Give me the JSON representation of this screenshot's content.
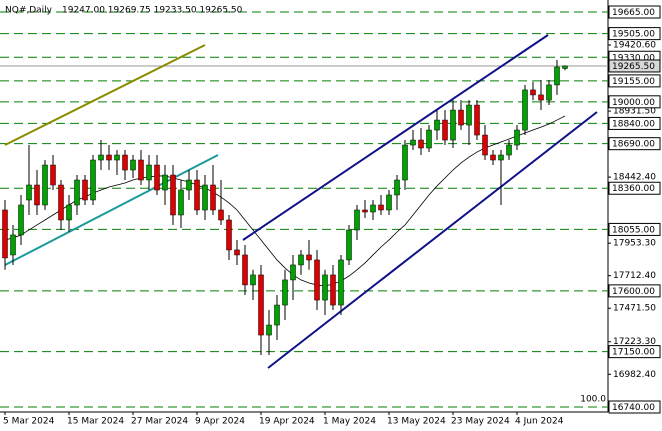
{
  "chart_data": {
    "type": "candlestick",
    "title": "NQ#,Daily",
    "subtitle": "19247.00 19269.75 19233.50 19265.50",
    "categories": [
      "5 Mar 2024",
      null,
      null,
      null,
      null,
      null,
      null,
      null,
      "15 Mar 2024",
      null,
      null,
      null,
      null,
      null,
      null,
      null,
      "27 Mar 2024",
      null,
      null,
      null,
      null,
      null,
      null,
      null,
      "9 Apr 2024",
      null,
      null,
      null,
      null,
      null,
      null,
      null,
      "19 Apr 2024",
      null,
      null,
      null,
      null,
      null,
      null,
      null,
      "1 May 2024",
      null,
      null,
      null,
      null,
      null,
      null,
      null,
      "13 May 2024",
      null,
      null,
      null,
      null,
      null,
      null,
      null,
      "23 May 2024",
      null,
      null,
      null,
      null,
      null,
      null,
      null,
      "4 Jun 2024",
      null,
      null,
      null,
      null,
      null,
      null
    ],
    "open": [
      18199,
      17866,
      18014,
      18273,
      18384,
      18236,
      18532,
      18384,
      18125,
      18236,
      18421,
      18273,
      18569,
      18606,
      18569,
      18606,
      18495,
      18569,
      18421,
      18532,
      18347,
      18458,
      18162,
      18347,
      18421,
      18199,
      18384,
      18199,
      18125,
      17903,
      17866,
      17644,
      17718,
      17273,
      17347,
      17495,
      17681,
      17792,
      17866,
      17829,
      17532,
      17718,
      17495,
      17829,
      18051,
      18199,
      18184,
      18236,
      18199,
      18310,
      18421,
      18680,
      18717,
      18658,
      18791,
      18865,
      18717,
      18939,
      18828,
      18976,
      18754,
      18606,
      18569,
      18606,
      18680,
      18791,
      19088,
      19051,
      19013,
      19125,
      19247
    ],
    "high": [
      18273,
      18088,
      18310,
      18680,
      18495,
      18569,
      18606,
      18421,
      18310,
      18458,
      18458,
      18606,
      18717,
      18680,
      18643,
      18643,
      18606,
      18643,
      18606,
      18606,
      18532,
      18532,
      18421,
      18495,
      18495,
      18458,
      18532,
      18421,
      18162,
      17977,
      17940,
      17756,
      17792,
      17458,
      17569,
      17756,
      17866,
      17903,
      17977,
      17903,
      17756,
      17792,
      17866,
      18088,
      18236,
      18273,
      18273,
      18310,
      18347,
      18458,
      18717,
      18791,
      18806,
      18828,
      18939,
      18939,
      19013,
      19013,
      19013,
      19013,
      18828,
      18643,
      18643,
      18717,
      18828,
      19125,
      19147,
      19162,
      19162,
      19310,
      19269.75
    ],
    "low": [
      17756,
      17792,
      17940,
      18162,
      18162,
      18199,
      18347,
      18051,
      18036,
      18162,
      18236,
      18236,
      18495,
      18495,
      18458,
      18421,
      18436,
      18384,
      18347,
      18310,
      18236,
      18088,
      18066,
      18273,
      18162,
      18125,
      18162,
      18088,
      17829,
      17792,
      17569,
      17532,
      17125,
      17125,
      17236,
      17384,
      17532,
      17718,
      17756,
      17458,
      17421,
      17458,
      17421,
      17792,
      17977,
      18140,
      18125,
      18162,
      18162,
      18199,
      18347,
      18643,
      18606,
      18628,
      18717,
      18680,
      18658,
      18791,
      18680,
      18717,
      18569,
      18532,
      18236,
      18569,
      18643,
      18754,
      19013,
      18939,
      18976,
      19051,
      19233.5
    ],
    "close": [
      17844,
      18014,
      18236,
      18384,
      18236,
      18532,
      18384,
      18125,
      18236,
      18421,
      18273,
      18569,
      18606,
      18569,
      18606,
      18495,
      18569,
      18421,
      18532,
      18347,
      18458,
      18162,
      18347,
      18421,
      18199,
      18384,
      18199,
      18125,
      17903,
      17866,
      17644,
      17718,
      17273,
      17347,
      17495,
      17681,
      17792,
      17866,
      17829,
      17532,
      17718,
      17495,
      17829,
      18051,
      18199,
      18184,
      18236,
      18199,
      18310,
      18421,
      18680,
      18717,
      18658,
      18791,
      18865,
      18717,
      18939,
      18828,
      18976,
      18754,
      18606,
      18569,
      18606,
      18680,
      18791,
      19088,
      19051,
      19013,
      19125,
      19258,
      19265.5
    ],
    "ma": {
      "color": "#000000",
      "values": [
        17977,
        17992,
        18014,
        18051,
        18088,
        18125,
        18162,
        18199,
        18236,
        18273,
        18295,
        18325,
        18347,
        18369,
        18384,
        18399,
        18421,
        18436,
        18443,
        18451,
        18451,
        18436,
        18421,
        18406,
        18384,
        18362,
        18332,
        18295,
        18251,
        18199,
        18125,
        18051,
        17977,
        17903,
        17829,
        17770,
        17718,
        17681,
        17658,
        17644,
        17636,
        17651,
        17673,
        17710,
        17756,
        17807,
        17866,
        17925,
        17977,
        18036,
        18088,
        18162,
        18236,
        18310,
        18377,
        18436,
        18495,
        18547,
        18591,
        18628,
        18658,
        18680,
        18702,
        18725,
        18747,
        18769,
        18791,
        18813,
        18836,
        18865,
        18895
      ]
    },
    "up_color": "#00a400",
    "down_color": "#e00000",
    "level_color": "#008000",
    "ylim": [
      16703,
      19754
    ],
    "yticks": [
      {
        "value": 19420.6,
        "label": "19420.60"
      },
      {
        "value": 18931.5,
        "label": "18931.50"
      },
      {
        "value": 18442.4,
        "label": "18442.40"
      },
      {
        "value": 17953.3,
        "label": "17953.30"
      },
      {
        "value": 17712.4,
        "label": "17712.40"
      },
      {
        "value": 17471.5,
        "label": "17471.50"
      },
      {
        "value": 17223.3,
        "label": "17223.30"
      },
      {
        "value": 16982.4,
        "label": "16982.40"
      }
    ],
    "levels": [
      {
        "value": 19665,
        "label": "19665.00"
      },
      {
        "value": 19505,
        "label": "19505.00"
      },
      {
        "value": 19330,
        "label": "19330.00"
      },
      {
        "value": 19155,
        "label": "19155.00"
      },
      {
        "value": 19000,
        "label": "19000.00"
      },
      {
        "value": 18840,
        "label": "18840.00"
      },
      {
        "value": 18690,
        "label": "18690.00"
      },
      {
        "value": 18360,
        "label": "18360.00"
      },
      {
        "value": 18055,
        "label": "18055.00"
      },
      {
        "value": 17600,
        "label": "17600.00"
      },
      {
        "value": 17150,
        "label": "17150.00"
      },
      {
        "value": 16740,
        "label": "16740.00"
      }
    ],
    "current_price": {
      "value": 19265.5,
      "label": "19265.50"
    },
    "indicator_label": "100.0"
  }
}
